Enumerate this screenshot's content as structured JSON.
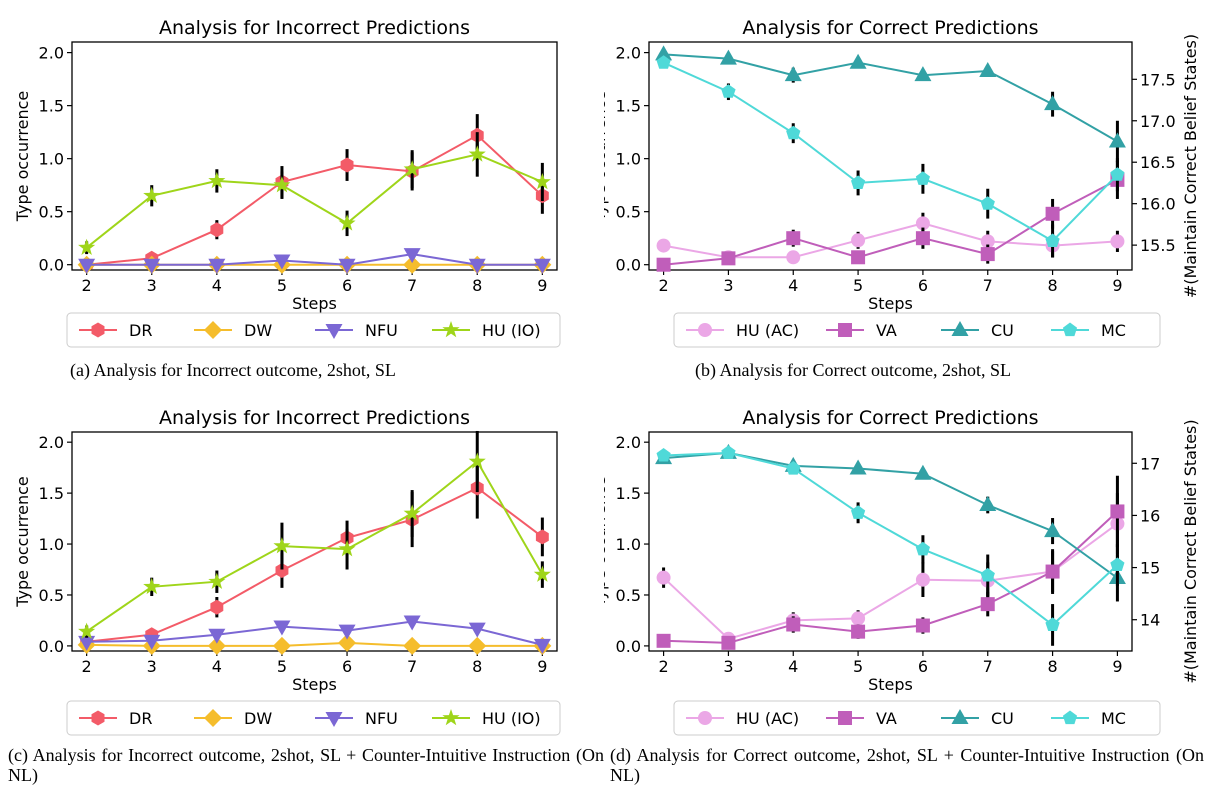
{
  "colors": {
    "DR": "#f35b68",
    "DW": "#f5bd2c",
    "NFU": "#7b67d4",
    "HUIO": "#9fd51a",
    "HUAC": "#eba7e6",
    "VA": "#c05eba",
    "CU": "#32a1a5",
    "MC": "#4fd9d8"
  },
  "captions": {
    "a": "(a) Analysis for Incorrect outcome, 2shot, SL",
    "b": "(b) Analysis for Correct outcome, 2shot, SL",
    "c": "(c) Analysis for Incorrect outcome, 2shot, SL + Counter-Intuitive Instruction (On NL)",
    "d": "(d) Analysis for Correct outcome, 2shot, SL + Counter-Intuitive Instruction (On NL)"
  },
  "chart_data": [
    {
      "type": "line",
      "title": "Analysis for Incorrect Predictions",
      "xlabel": "Steps",
      "ylabel": "Type occurrence",
      "x": [
        2,
        3,
        4,
        5,
        6,
        7,
        8,
        9
      ],
      "ylim": [
        -0.05,
        2.1
      ],
      "yticks": [
        "0.0",
        "0.5",
        "1.0",
        "1.5",
        "2.0"
      ],
      "legend_position": "below",
      "series": [
        {
          "name": "DR",
          "marker": "hexagon",
          "values": [
            0.0,
            0.06,
            0.33,
            0.78,
            0.94,
            0.88,
            1.22,
            0.65
          ],
          "err": [
            0.03,
            0.04,
            0.09,
            0.15,
            0.15,
            0.18,
            0.2,
            0.17
          ]
        },
        {
          "name": "DW",
          "marker": "diamond",
          "values": [
            0.0,
            0.0,
            0.0,
            0.0,
            0.0,
            0.0,
            0.0,
            0.0
          ],
          "err": [
            0,
            0,
            0,
            0,
            0,
            0,
            0,
            0
          ]
        },
        {
          "name": "NFU",
          "marker": "triangle-down",
          "values": [
            0.0,
            0.0,
            0.0,
            0.04,
            0.0,
            0.1,
            0.0,
            0.0
          ],
          "err": [
            0,
            0,
            0,
            0.03,
            0,
            0.05,
            0,
            0
          ]
        },
        {
          "name": "HU (IO)",
          "marker": "star",
          "values": [
            0.16,
            0.65,
            0.79,
            0.75,
            0.39,
            0.9,
            1.04,
            0.78
          ],
          "err": [
            0.06,
            0.1,
            0.11,
            0.13,
            0.12,
            0.18,
            0.21,
            0.18
          ]
        }
      ]
    },
    {
      "type": "line",
      "title": "Analysis for Correct Predictions",
      "xlabel": "Steps",
      "ylabel": "Type occurrence",
      "y2label": "#(Maintain Correct Belief States)",
      "x": [
        2,
        3,
        4,
        5,
        6,
        7,
        8,
        9
      ],
      "ylim": [
        -0.05,
        2.1
      ],
      "yticks": [
        "0.0",
        "0.5",
        "1.0",
        "1.5",
        "2.0"
      ],
      "y2ticks": [
        "15.5",
        "16.0",
        "16.5",
        "17.0",
        "17.5"
      ],
      "legend_position": "below",
      "series": [
        {
          "name": "HU (AC)",
          "marker": "circle",
          "axis": "left",
          "values": [
            0.18,
            0.07,
            0.07,
            0.23,
            0.39,
            0.22,
            0.18,
            0.22
          ],
          "err": [
            0.06,
            0.03,
            0.04,
            0.08,
            0.1,
            0.1,
            0.11,
            0.1
          ]
        },
        {
          "name": "VA",
          "marker": "square",
          "axis": "left",
          "values": [
            0.0,
            0.06,
            0.25,
            0.07,
            0.25,
            0.1,
            0.48,
            0.8
          ],
          "err": [
            0.03,
            0.04,
            0.08,
            0.06,
            0.1,
            0.09,
            0.14,
            0.18
          ]
        },
        {
          "name": "CU",
          "marker": "triangle-up",
          "axis": "right",
          "values": [
            17.8,
            17.75,
            17.55,
            17.7,
            17.55,
            17.6,
            17.2,
            16.75
          ],
          "err": [
            0.06,
            0.05,
            0.09,
            0.06,
            0.07,
            0.07,
            0.15,
            0.25
          ]
        },
        {
          "name": "MC",
          "marker": "pentagon",
          "axis": "right",
          "values": [
            17.7,
            17.35,
            16.85,
            16.25,
            16.3,
            16.0,
            15.55,
            16.35
          ],
          "err": [
            0.06,
            0.1,
            0.12,
            0.15,
            0.18,
            0.18,
            0.2,
            0.2
          ]
        }
      ]
    },
    {
      "type": "line",
      "title": "Analysis for Incorrect Predictions",
      "xlabel": "Steps",
      "ylabel": "Type occurrence",
      "x": [
        2,
        3,
        4,
        5,
        6,
        7,
        8,
        9
      ],
      "ylim": [
        -0.05,
        2.1
      ],
      "yticks": [
        "0.0",
        "0.5",
        "1.0",
        "1.5",
        "2.0"
      ],
      "legend_position": "below",
      "series": [
        {
          "name": "DR",
          "marker": "hexagon",
          "values": [
            0.04,
            0.11,
            0.38,
            0.74,
            1.06,
            1.24,
            1.55,
            1.07
          ],
          "err": [
            0.03,
            0.05,
            0.1,
            0.17,
            0.17,
            0.27,
            0.3,
            0.19
          ]
        },
        {
          "name": "DW",
          "marker": "diamond",
          "values": [
            0.01,
            0.0,
            0.0,
            0.0,
            0.03,
            0.0,
            0.0,
            0.0
          ],
          "err": [
            0,
            0,
            0,
            0,
            0,
            0,
            0,
            0
          ]
        },
        {
          "name": "NFU",
          "marker": "triangle-down",
          "values": [
            0.04,
            0.05,
            0.11,
            0.19,
            0.15,
            0.24,
            0.17,
            0.01
          ],
          "err": [
            0,
            0,
            0,
            0,
            0,
            0,
            0,
            0
          ]
        },
        {
          "name": "HU (IO)",
          "marker": "star",
          "values": [
            0.14,
            0.58,
            0.63,
            0.98,
            0.95,
            1.3,
            1.81,
            0.7
          ],
          "err": [
            0.06,
            0.09,
            0.11,
            0.23,
            0.2,
            0.23,
            0.3,
            0.13
          ]
        }
      ]
    },
    {
      "type": "line",
      "title": "Analysis for Correct Predictions",
      "xlabel": "Steps",
      "ylabel": "Type occurrence",
      "y2label": "#(Maintain Correct Belief States)",
      "x": [
        2,
        3,
        4,
        5,
        6,
        7,
        8,
        9
      ],
      "ylim": [
        -0.05,
        2.1
      ],
      "yticks": [
        "0.0",
        "0.5",
        "1.0",
        "1.5",
        "2.0"
      ],
      "y2ticks": [
        "14",
        "15",
        "16",
        "17"
      ],
      "legend_position": "below",
      "series": [
        {
          "name": "HU (AC)",
          "marker": "circle",
          "axis": "left",
          "values": [
            0.67,
            0.07,
            0.25,
            0.27,
            0.65,
            0.64,
            0.73,
            1.2
          ],
          "err": [
            0.1,
            0.04,
            0.08,
            0.08,
            0.17,
            0.18,
            0.22,
            0.3
          ]
        },
        {
          "name": "VA",
          "marker": "square",
          "axis": "left",
          "values": [
            0.05,
            0.03,
            0.21,
            0.14,
            0.2,
            0.41,
            0.73,
            1.32
          ],
          "err": [
            0.03,
            0.03,
            0.08,
            0.07,
            0.08,
            0.12,
            0.2,
            0.35
          ]
        },
        {
          "name": "CU",
          "marker": "triangle-up",
          "axis": "right",
          "values": [
            17.1,
            17.2,
            16.95,
            16.9,
            16.8,
            16.2,
            15.7,
            14.8
          ],
          "err": [
            0.06,
            0.05,
            0.08,
            0.06,
            0.08,
            0.16,
            0.25,
            0.45
          ]
        },
        {
          "name": "MC",
          "marker": "pentagon",
          "axis": "right",
          "values": [
            17.15,
            17.2,
            16.9,
            16.05,
            15.35,
            14.85,
            13.9,
            15.05
          ],
          "err": [
            0.06,
            0.07,
            0.1,
            0.2,
            0.27,
            0.4,
            0.4,
            0.4
          ]
        }
      ]
    }
  ]
}
